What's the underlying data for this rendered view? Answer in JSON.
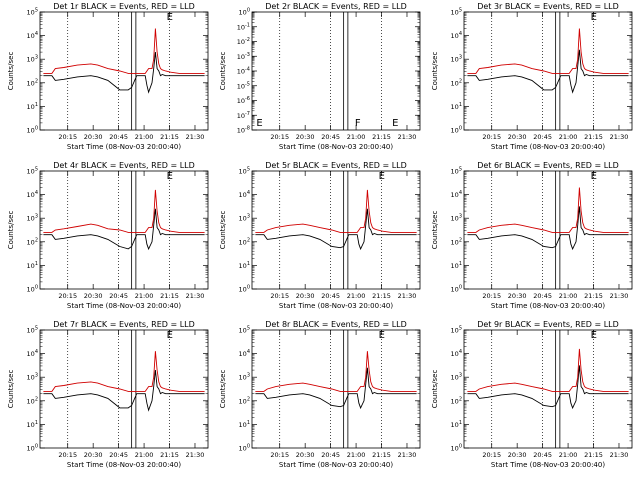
{
  "figure": {
    "background": "#ffffff",
    "events_color": "#000000",
    "lld_color": "#d00000"
  },
  "chart_data": [
    {
      "type": "line",
      "title": "Det 1r BLACK = Events, RED = LLD",
      "xlabel": "Start Time (08-Nov-03 20:00:40)",
      "ylabel": "Counts/sec",
      "xticks": [
        "20:15",
        "20:30",
        "20:45",
        "21:00",
        "21:15",
        "21:30"
      ],
      "yticks": [
        "10^0",
        "10^1",
        "10^2",
        "10^3",
        "10^4",
        "10^5"
      ],
      "yscale": "log",
      "ylim_exp": [
        0,
        5
      ],
      "x_minutes": [
        0,
        5,
        7,
        12,
        20,
        28,
        32,
        38,
        45,
        50,
        52,
        55,
        57,
        60,
        61,
        62,
        64,
        65,
        66,
        67,
        68,
        69,
        70,
        72,
        75,
        80,
        95
      ],
      "series": [
        {
          "role": "events",
          "log10_values": [
            2.3,
            2.3,
            2.1,
            2.15,
            2.25,
            2.3,
            2.25,
            2.1,
            1.7,
            1.7,
            1.8,
            2.3,
            2.3,
            2.3,
            1.9,
            1.6,
            2.0,
            2.6,
            3.3,
            2.6,
            2.5,
            2.3,
            2.35,
            2.3,
            2.3,
            2.3,
            2.3
          ]
        },
        {
          "role": "lld",
          "log10_values": [
            2.4,
            2.4,
            2.6,
            2.65,
            2.75,
            2.8,
            2.75,
            2.6,
            2.5,
            2.4,
            2.4,
            2.4,
            2.4,
            2.4,
            2.5,
            2.6,
            2.6,
            3.0,
            4.3,
            3.3,
            2.8,
            2.6,
            2.55,
            2.5,
            2.45,
            2.4,
            2.4
          ]
        }
      ],
      "flags": [
        {
          "text": "E",
          "x_minutes": 72
        }
      ]
    },
    {
      "type": "line",
      "title": "Det 2r BLACK = Events, RED = LLD",
      "xlabel": "Start Time (08-Nov-03 20:00:40)",
      "ylabel": "Counts/sec",
      "xticks": [
        "20:15",
        "20:30",
        "20:45",
        "21:00",
        "21:15",
        "21:30"
      ],
      "yticks": [
        "10^-8",
        "10^-7",
        "10^-6",
        "10^-5",
        "10^-4",
        "10^-3",
        "10^-2",
        "10^-1",
        "10^0"
      ],
      "yscale": "log",
      "ylim_exp": [
        -8,
        0
      ],
      "x_minutes": [],
      "series": [],
      "flags": [
        {
          "text": "E",
          "x_minutes": 0
        },
        {
          "text": "F",
          "x_minutes": 58
        },
        {
          "text": "E",
          "x_minutes": 80
        }
      ]
    },
    {
      "type": "line",
      "title": "Det 3r BLACK = Events, RED = LLD",
      "xlabel": "Start Time (08-Nov-03 20:00:40)",
      "ylabel": "Counts/sec",
      "xticks": [
        "20:15",
        "20:30",
        "20:45",
        "21:00",
        "21:15",
        "21:30"
      ],
      "yticks": [
        "10^0",
        "10^1",
        "10^2",
        "10^3",
        "10^4",
        "10^5"
      ],
      "yscale": "log",
      "ylim_exp": [
        0,
        5
      ],
      "x_minutes": [
        0,
        5,
        7,
        12,
        20,
        28,
        32,
        38,
        45,
        50,
        52,
        55,
        57,
        60,
        61,
        62,
        64,
        65,
        66,
        67,
        68,
        69,
        70,
        72,
        75,
        80,
        95
      ],
      "series": [
        {
          "role": "events",
          "log10_values": [
            2.3,
            2.3,
            2.1,
            2.15,
            2.25,
            2.3,
            2.25,
            2.1,
            1.7,
            1.7,
            1.8,
            2.3,
            2.3,
            2.3,
            1.9,
            1.6,
            2.0,
            2.7,
            3.4,
            2.6,
            2.5,
            2.3,
            2.35,
            2.3,
            2.3,
            2.3,
            2.3
          ]
        },
        {
          "role": "lld",
          "log10_values": [
            2.4,
            2.4,
            2.6,
            2.65,
            2.75,
            2.8,
            2.75,
            2.6,
            2.5,
            2.4,
            2.4,
            2.4,
            2.4,
            2.4,
            2.5,
            2.6,
            2.6,
            3.0,
            4.3,
            3.3,
            2.8,
            2.6,
            2.55,
            2.5,
            2.45,
            2.4,
            2.4
          ]
        }
      ],
      "flags": [
        {
          "text": "E",
          "x_minutes": 72
        }
      ]
    },
    {
      "type": "line",
      "title": "Det 4r BLACK = Events, RED = LLD",
      "xlabel": "Start Time (08-Nov-03 20:00:40)",
      "ylabel": "Counts/sec",
      "xticks": [
        "20:15",
        "20:30",
        "20:45",
        "21:00",
        "21:15",
        "21:30"
      ],
      "yticks": [
        "10^0",
        "10^1",
        "10^2",
        "10^3",
        "10^4",
        "10^5"
      ],
      "yscale": "log",
      "ylim_exp": [
        0,
        5
      ],
      "x_minutes": [
        0,
        5,
        7,
        12,
        20,
        28,
        32,
        38,
        45,
        50,
        52,
        55,
        57,
        60,
        61,
        62,
        64,
        65,
        66,
        67,
        68,
        69,
        70,
        72,
        75,
        80,
        95
      ],
      "series": [
        {
          "role": "events",
          "log10_values": [
            2.3,
            2.3,
            2.1,
            2.15,
            2.25,
            2.3,
            2.25,
            2.1,
            1.8,
            1.7,
            1.8,
            2.3,
            2.3,
            2.3,
            1.9,
            1.7,
            2.0,
            2.7,
            3.4,
            2.6,
            2.5,
            2.3,
            2.35,
            2.3,
            2.3,
            2.3,
            2.3
          ]
        },
        {
          "role": "lld",
          "log10_values": [
            2.4,
            2.4,
            2.5,
            2.55,
            2.65,
            2.75,
            2.7,
            2.55,
            2.5,
            2.4,
            2.4,
            2.4,
            2.4,
            2.4,
            2.5,
            2.6,
            2.6,
            3.0,
            4.2,
            3.3,
            2.8,
            2.6,
            2.55,
            2.5,
            2.45,
            2.4,
            2.4
          ]
        }
      ],
      "flags": [
        {
          "text": "E",
          "x_minutes": 72
        }
      ]
    },
    {
      "type": "line",
      "title": "Det 5r BLACK = Events, RED = LLD",
      "xlabel": "Start Time (08-Nov-03 20:00:40)",
      "ylabel": "Counts/sec",
      "xticks": [
        "20:15",
        "20:30",
        "20:45",
        "21:00",
        "21:15",
        "21:30"
      ],
      "yticks": [
        "10^0",
        "10^1",
        "10^2",
        "10^3",
        "10^4",
        "10^5"
      ],
      "yscale": "log",
      "ylim_exp": [
        0,
        5
      ],
      "x_minutes": [
        0,
        5,
        7,
        12,
        20,
        28,
        32,
        38,
        45,
        50,
        52,
        55,
        57,
        60,
        61,
        62,
        64,
        65,
        66,
        67,
        68,
        69,
        70,
        72,
        75,
        80,
        95
      ],
      "series": [
        {
          "role": "events",
          "log10_values": [
            2.3,
            2.3,
            2.1,
            2.15,
            2.25,
            2.3,
            2.25,
            2.1,
            1.8,
            1.75,
            1.8,
            2.3,
            2.3,
            2.3,
            1.9,
            1.7,
            2.0,
            2.7,
            3.4,
            2.6,
            2.5,
            2.3,
            2.35,
            2.3,
            2.3,
            2.3,
            2.3
          ]
        },
        {
          "role": "lld",
          "log10_values": [
            2.4,
            2.4,
            2.5,
            2.6,
            2.7,
            2.75,
            2.7,
            2.6,
            2.5,
            2.4,
            2.4,
            2.4,
            2.4,
            2.4,
            2.5,
            2.6,
            2.6,
            3.0,
            4.2,
            3.3,
            2.8,
            2.6,
            2.55,
            2.5,
            2.45,
            2.4,
            2.4
          ]
        }
      ],
      "flags": [
        {
          "text": "E",
          "x_minutes": 72
        }
      ]
    },
    {
      "type": "line",
      "title": "Det 6r BLACK = Events, RED = LLD",
      "xlabel": "Start Time (08-Nov-03 20:00:40)",
      "ylabel": "Counts/sec",
      "xticks": [
        "20:15",
        "20:30",
        "20:45",
        "21:00",
        "21:15",
        "21:30"
      ],
      "yticks": [
        "10^0",
        "10^1",
        "10^2",
        "10^3",
        "10^4",
        "10^5"
      ],
      "yscale": "log",
      "ylim_exp": [
        0,
        5
      ],
      "x_minutes": [
        0,
        5,
        7,
        12,
        20,
        28,
        32,
        38,
        45,
        50,
        52,
        55,
        57,
        60,
        61,
        62,
        64,
        65,
        66,
        67,
        68,
        69,
        70,
        72,
        75,
        80,
        95
      ],
      "series": [
        {
          "role": "events",
          "log10_values": [
            2.3,
            2.3,
            2.1,
            2.15,
            2.25,
            2.3,
            2.25,
            2.1,
            1.8,
            1.75,
            1.8,
            2.3,
            2.3,
            2.3,
            1.9,
            1.7,
            2.0,
            2.7,
            3.5,
            2.6,
            2.5,
            2.3,
            2.35,
            2.3,
            2.3,
            2.3,
            2.3
          ]
        },
        {
          "role": "lld",
          "log10_values": [
            2.4,
            2.4,
            2.5,
            2.6,
            2.7,
            2.75,
            2.7,
            2.6,
            2.5,
            2.4,
            2.4,
            2.4,
            2.4,
            2.4,
            2.5,
            2.6,
            2.6,
            3.0,
            4.3,
            3.3,
            2.8,
            2.6,
            2.55,
            2.5,
            2.45,
            2.4,
            2.4
          ]
        }
      ],
      "flags": [
        {
          "text": "E",
          "x_minutes": 72
        }
      ]
    },
    {
      "type": "line",
      "title": "Det 7r BLACK = Events, RED = LLD",
      "xlabel": "Start Time (08-Nov-03 20:00:40)",
      "ylabel": "Counts/sec",
      "xticks": [
        "20:15",
        "20:30",
        "20:45",
        "21:00",
        "21:15",
        "21:30"
      ],
      "yticks": [
        "10^0",
        "10^1",
        "10^2",
        "10^3",
        "10^4",
        "10^5"
      ],
      "yscale": "log",
      "ylim_exp": [
        0,
        5
      ],
      "x_minutes": [
        0,
        5,
        7,
        12,
        20,
        28,
        32,
        38,
        45,
        50,
        52,
        55,
        57,
        60,
        61,
        62,
        64,
        65,
        66,
        67,
        68,
        69,
        70,
        72,
        75,
        80,
        95
      ],
      "series": [
        {
          "role": "events",
          "log10_values": [
            2.3,
            2.3,
            2.1,
            2.15,
            2.25,
            2.3,
            2.25,
            2.1,
            1.7,
            1.7,
            1.8,
            2.3,
            2.3,
            2.3,
            1.9,
            1.6,
            2.0,
            2.6,
            3.3,
            2.6,
            2.5,
            2.3,
            2.35,
            2.3,
            2.3,
            2.3,
            2.3
          ]
        },
        {
          "role": "lld",
          "log10_values": [
            2.4,
            2.4,
            2.6,
            2.65,
            2.75,
            2.8,
            2.75,
            2.6,
            2.5,
            2.4,
            2.4,
            2.4,
            2.4,
            2.4,
            2.5,
            2.6,
            2.6,
            3.0,
            4.1,
            3.3,
            2.8,
            2.6,
            2.55,
            2.5,
            2.45,
            2.4,
            2.4
          ]
        }
      ],
      "flags": [
        {
          "text": "E",
          "x_minutes": 72
        }
      ]
    },
    {
      "type": "line",
      "title": "Det 8r BLACK = Events, RED = LLD",
      "xlabel": "Start Time (08-Nov-03 20:00:40)",
      "ylabel": "Counts/sec",
      "xticks": [
        "20:15",
        "20:30",
        "20:45",
        "21:00",
        "21:15",
        "21:30"
      ],
      "yticks": [
        "10^0",
        "10^1",
        "10^2",
        "10^3",
        "10^4",
        "10^5"
      ],
      "yscale": "log",
      "ylim_exp": [
        0,
        5
      ],
      "x_minutes": [
        0,
        5,
        7,
        12,
        20,
        28,
        32,
        38,
        45,
        50,
        52,
        55,
        57,
        60,
        61,
        62,
        64,
        65,
        66,
        67,
        68,
        69,
        70,
        72,
        75,
        80,
        95
      ],
      "series": [
        {
          "role": "events",
          "log10_values": [
            2.3,
            2.3,
            2.1,
            2.15,
            2.25,
            2.3,
            2.25,
            2.1,
            1.8,
            1.75,
            1.8,
            2.3,
            2.3,
            2.3,
            1.9,
            1.7,
            2.0,
            2.7,
            3.4,
            2.6,
            2.5,
            2.3,
            2.35,
            2.3,
            2.3,
            2.3,
            2.3
          ]
        },
        {
          "role": "lld",
          "log10_values": [
            2.4,
            2.4,
            2.5,
            2.6,
            2.7,
            2.75,
            2.7,
            2.6,
            2.5,
            2.4,
            2.4,
            2.4,
            2.4,
            2.4,
            2.5,
            2.6,
            2.6,
            3.0,
            4.1,
            3.3,
            2.8,
            2.6,
            2.55,
            2.5,
            2.45,
            2.4,
            2.4
          ]
        }
      ],
      "flags": [
        {
          "text": "E",
          "x_minutes": 72
        }
      ]
    },
    {
      "type": "line",
      "title": "Det 9r BLACK = Events, RED = LLD",
      "xlabel": "Start Time (08-Nov-03 20:00:40)",
      "ylabel": "Counts/sec",
      "xticks": [
        "20:15",
        "20:30",
        "20:45",
        "21:00",
        "21:15",
        "21:30"
      ],
      "yticks": [
        "10^0",
        "10^1",
        "10^2",
        "10^3",
        "10^4",
        "10^5"
      ],
      "yscale": "log",
      "ylim_exp": [
        0,
        5
      ],
      "x_minutes": [
        0,
        5,
        7,
        12,
        20,
        28,
        32,
        38,
        45,
        50,
        52,
        55,
        57,
        60,
        61,
        62,
        64,
        65,
        66,
        67,
        68,
        69,
        70,
        72,
        75,
        80,
        95
      ],
      "series": [
        {
          "role": "events",
          "log10_values": [
            2.3,
            2.3,
            2.1,
            2.15,
            2.25,
            2.3,
            2.25,
            2.1,
            1.8,
            1.75,
            1.8,
            2.3,
            2.3,
            2.3,
            1.9,
            1.7,
            2.0,
            2.7,
            3.5,
            2.6,
            2.5,
            2.3,
            2.35,
            2.3,
            2.3,
            2.3,
            2.3
          ]
        },
        {
          "role": "lld",
          "log10_values": [
            2.4,
            2.4,
            2.5,
            2.6,
            2.7,
            2.75,
            2.7,
            2.6,
            2.5,
            2.4,
            2.4,
            2.4,
            2.4,
            2.4,
            2.5,
            2.6,
            2.6,
            3.0,
            4.2,
            3.3,
            2.8,
            2.6,
            2.55,
            2.5,
            2.45,
            2.4,
            2.4
          ]
        }
      ],
      "flags": [
        {
          "text": "E",
          "x_minutes": 72
        }
      ]
    }
  ]
}
